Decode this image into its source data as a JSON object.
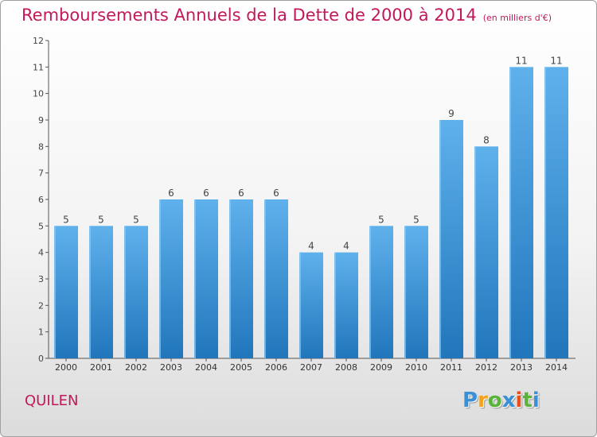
{
  "chart_data": {
    "type": "bar",
    "title": "Remboursements Annuels de la Dette de 2000 à 2014",
    "subtitle": "(en milliers d'€)",
    "categories": [
      "2000",
      "2001",
      "2002",
      "2003",
      "2004",
      "2005",
      "2006",
      "2007",
      "2008",
      "2009",
      "2010",
      "2011",
      "2012",
      "2013",
      "2014"
    ],
    "values": [
      5,
      5,
      5,
      6,
      6,
      6,
      6,
      4,
      4,
      5,
      5,
      9,
      8,
      11,
      11
    ],
    "ylim": [
      0,
      12
    ],
    "yticks": [
      0,
      1,
      2,
      3,
      4,
      5,
      6,
      7,
      8,
      9,
      10,
      11,
      12
    ],
    "grid": false,
    "bar_color": "#3d97dd"
  },
  "footer": {
    "place": "QUILEN",
    "logo": {
      "p": "P",
      "r": "r",
      "o": "o",
      "x": "x",
      "i": "i",
      "t": "t",
      "i2": "i"
    }
  },
  "colors": {
    "title": "#c2185b",
    "axis": "#555555"
  }
}
